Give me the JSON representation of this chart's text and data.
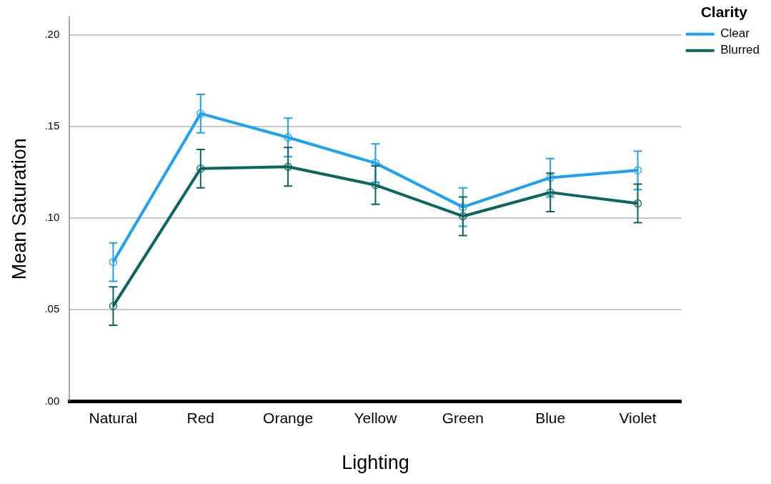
{
  "chart_data": {
    "type": "line",
    "xlabel": "Lighting",
    "ylabel": "Mean Saturation",
    "legend_title": "Clarity",
    "legend": "top right",
    "grid": "y",
    "marker": "circle",
    "line_style": "solid",
    "categories": [
      "Natural",
      "Red",
      "Orange",
      "Yellow",
      "Green",
      "Blue",
      "Violet"
    ],
    "ylim": [
      0,
      0.21
    ],
    "yticks": [
      {
        "value": 0,
        "label": ".00"
      },
      {
        "value": 0.05,
        "label": ".05"
      },
      {
        "value": 0.1,
        "label": ".10"
      },
      {
        "value": 0.15,
        "label": ".15"
      },
      {
        "value": 0.2,
        "label": ".20"
      }
    ],
    "series": [
      {
        "name": "Clear",
        "color": "#1da1f2",
        "values": [
          0.076,
          0.157,
          0.144,
          0.13,
          0.106,
          0.122,
          0.126
        ],
        "errors": [
          0.0105,
          0.0105,
          0.0105,
          0.0105,
          0.0105,
          0.0105,
          0.0105
        ]
      },
      {
        "name": "Blurred",
        "color": "#0b6560",
        "values": [
          0.052,
          0.127,
          0.128,
          0.118,
          0.101,
          0.114,
          0.108
        ],
        "errors": [
          0.0105,
          0.0105,
          0.0105,
          0.0105,
          0.0105,
          0.0105,
          0.0105
        ]
      }
    ]
  }
}
